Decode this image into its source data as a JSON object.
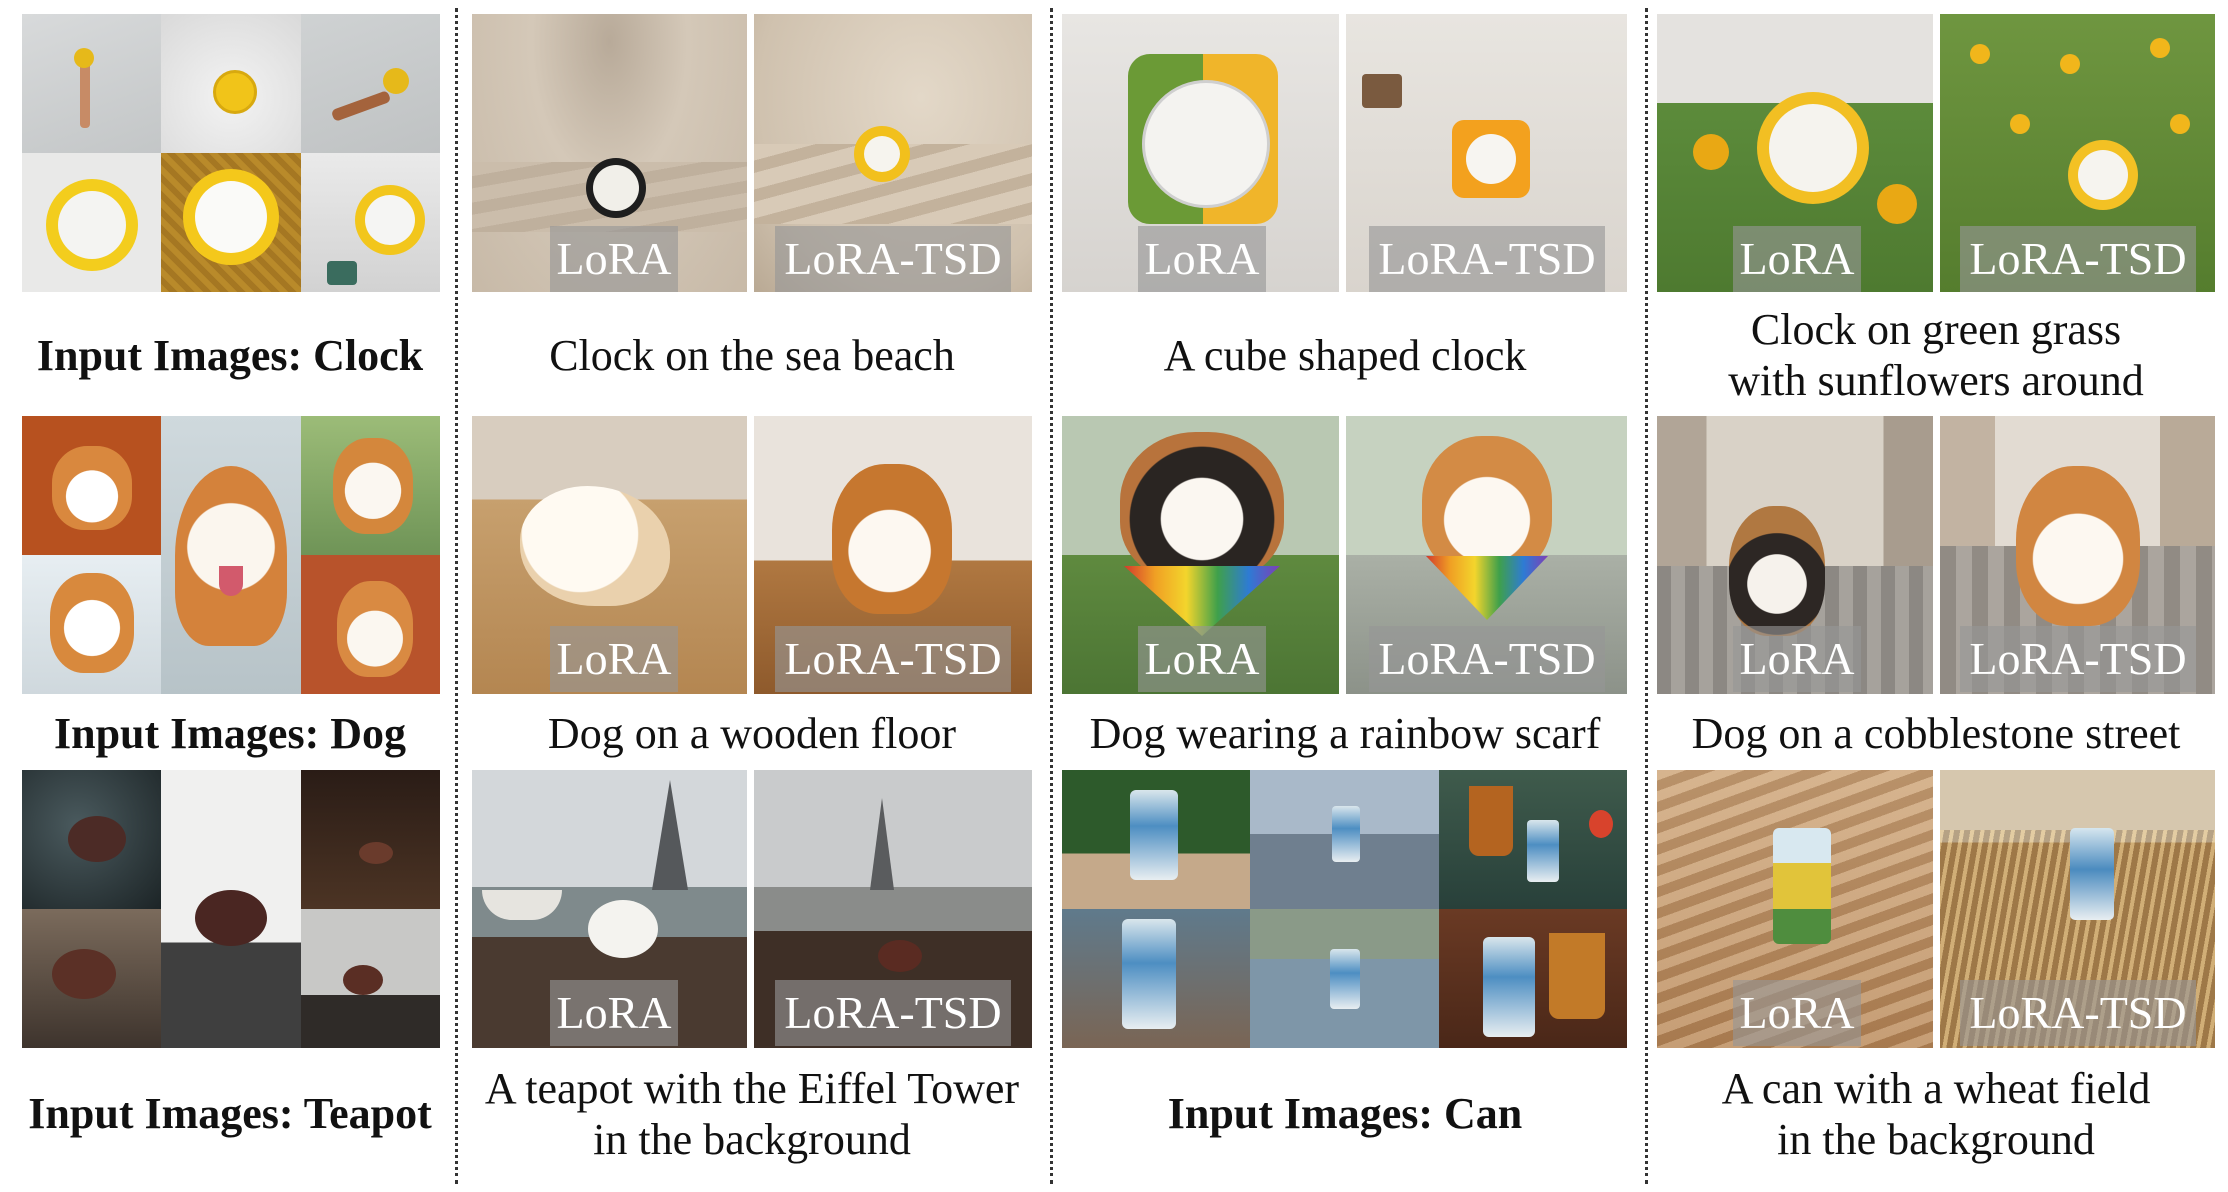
{
  "badges": {
    "lora": "LoRA",
    "lora_tsd": "LoRA-TSD"
  },
  "input_labels": {
    "clock": "Input Images: Clock",
    "dog": "Input Images: Dog",
    "teapot": "Input Images: Teapot",
    "can": "Input Images: Can"
  },
  "prompts": {
    "clock_beach": "Clock on the sea beach",
    "clock_cube": "A cube shaped clock",
    "clock_grass": "Clock on green grass\nwith sunflowers around",
    "dog_floor": "Dog on a wooden floor",
    "dog_scarf": "Dog wearing a rainbow scarf",
    "dog_street": "Dog on a cobblestone street",
    "teapot_eiffel": "A teapot with the Eiffel Tower\nin the background",
    "can_wheat": "A can with a wheat field\nin the background"
  }
}
